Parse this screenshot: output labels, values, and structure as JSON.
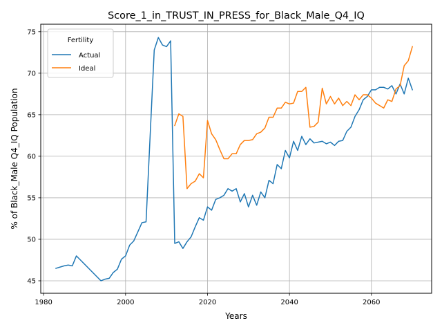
{
  "chart_data": {
    "type": "line",
    "title": "Score_1_in_TRUST_IN_PRESS_for_Black_Male_Q4_IQ",
    "xlabel": "Years",
    "ylabel": "% of Black_Male Q4_IQ Population",
    "xlim": [
      1979.3,
      2074.7
    ],
    "ylim": [
      43.5,
      75.9
    ],
    "xticks": [
      1980,
      2000,
      2020,
      2040,
      2060
    ],
    "yticks": [
      45,
      50,
      55,
      60,
      65,
      70,
      75
    ],
    "grid": true,
    "legend": {
      "title": "Fertility",
      "placement": "top-left"
    },
    "series": [
      {
        "name": "Actual",
        "color": "#1f77b4",
        "x": [
          1983,
          1985,
          1986,
          1987,
          1988,
          1994,
          1995,
          1996,
          1997,
          1998,
          1999,
          2000,
          2001,
          2002,
          2003,
          2004,
          2005,
          2006,
          2007,
          2008,
          2009,
          2010,
          2011,
          2012,
          2013,
          2014,
          2015,
          2016,
          2017,
          2018,
          2019,
          2020,
          2021,
          2022,
          2023,
          2024,
          2025,
          2026,
          2027,
          2028,
          2029,
          2030,
          2031,
          2032,
          2033,
          2034,
          2035,
          2036,
          2037,
          2038,
          2039,
          2040,
          2041,
          2042,
          2043,
          2044,
          2045,
          2046,
          2047,
          2048,
          2049,
          2050,
          2051,
          2052,
          2053,
          2054,
          2055,
          2056,
          2057,
          2058,
          2059,
          2060,
          2061,
          2062,
          2063,
          2064,
          2065,
          2066,
          2067,
          2068,
          2069,
          2070
        ],
        "values": [
          46.5,
          46.8,
          46.9,
          46.8,
          48.0,
          45.0,
          45.2,
          45.3,
          46.0,
          46.4,
          47.6,
          48.0,
          49.3,
          49.8,
          50.9,
          52.0,
          52.1,
          62.5,
          72.8,
          74.3,
          73.4,
          73.2,
          73.9,
          49.5,
          49.7,
          48.9,
          49.7,
          50.3,
          51.5,
          52.6,
          52.3,
          53.9,
          53.5,
          54.8,
          55.0,
          55.3,
          56.1,
          55.8,
          56.1,
          54.5,
          55.5,
          53.9,
          55.3,
          54.1,
          55.7,
          55.0,
          57.1,
          56.7,
          59.0,
          58.5,
          60.7,
          59.8,
          61.8,
          60.7,
          62.4,
          61.4,
          62.1,
          61.6,
          61.7,
          61.8,
          61.5,
          61.7,
          61.3,
          61.8,
          61.9,
          63.0,
          63.5,
          64.8,
          65.6,
          66.8,
          67.2,
          68.0,
          68.0,
          68.3,
          68.3,
          68.1,
          68.5,
          67.5,
          68.7,
          67.5,
          69.4,
          68.0
        ]
      },
      {
        "name": "Ideal",
        "color": "#ff7f0e",
        "x": [
          2012,
          2013,
          2014,
          2015,
          2016,
          2017,
          2018,
          2019,
          2020,
          2021,
          2022,
          2023,
          2024,
          2025,
          2026,
          2027,
          2028,
          2029,
          2030,
          2031,
          2032,
          2033,
          2034,
          2035,
          2036,
          2037,
          2038,
          2039,
          2040,
          2041,
          2042,
          2043,
          2044,
          2045,
          2046,
          2047,
          2048,
          2049,
          2050,
          2051,
          2052,
          2053,
          2054,
          2055,
          2056,
          2057,
          2058,
          2059,
          2060,
          2061,
          2062,
          2063,
          2064,
          2065,
          2066,
          2067,
          2068,
          2069,
          2070
        ],
        "values": [
          63.7,
          65.1,
          64.8,
          56.1,
          56.7,
          57.0,
          57.9,
          57.4,
          64.3,
          62.7,
          62.0,
          60.8,
          59.7,
          59.7,
          60.3,
          60.3,
          61.4,
          61.9,
          61.9,
          62.0,
          62.7,
          62.9,
          63.4,
          64.7,
          64.7,
          65.8,
          65.8,
          66.5,
          66.3,
          66.4,
          67.8,
          67.8,
          68.3,
          63.5,
          63.6,
          64.1,
          68.2,
          66.3,
          67.2,
          66.3,
          67.0,
          66.1,
          66.6,
          66.1,
          67.4,
          66.8,
          67.4,
          67.4,
          67.0,
          66.4,
          66.1,
          65.8,
          66.8,
          66.6,
          68.1,
          68.5,
          70.9,
          71.5,
          73.2
        ]
      }
    ]
  }
}
